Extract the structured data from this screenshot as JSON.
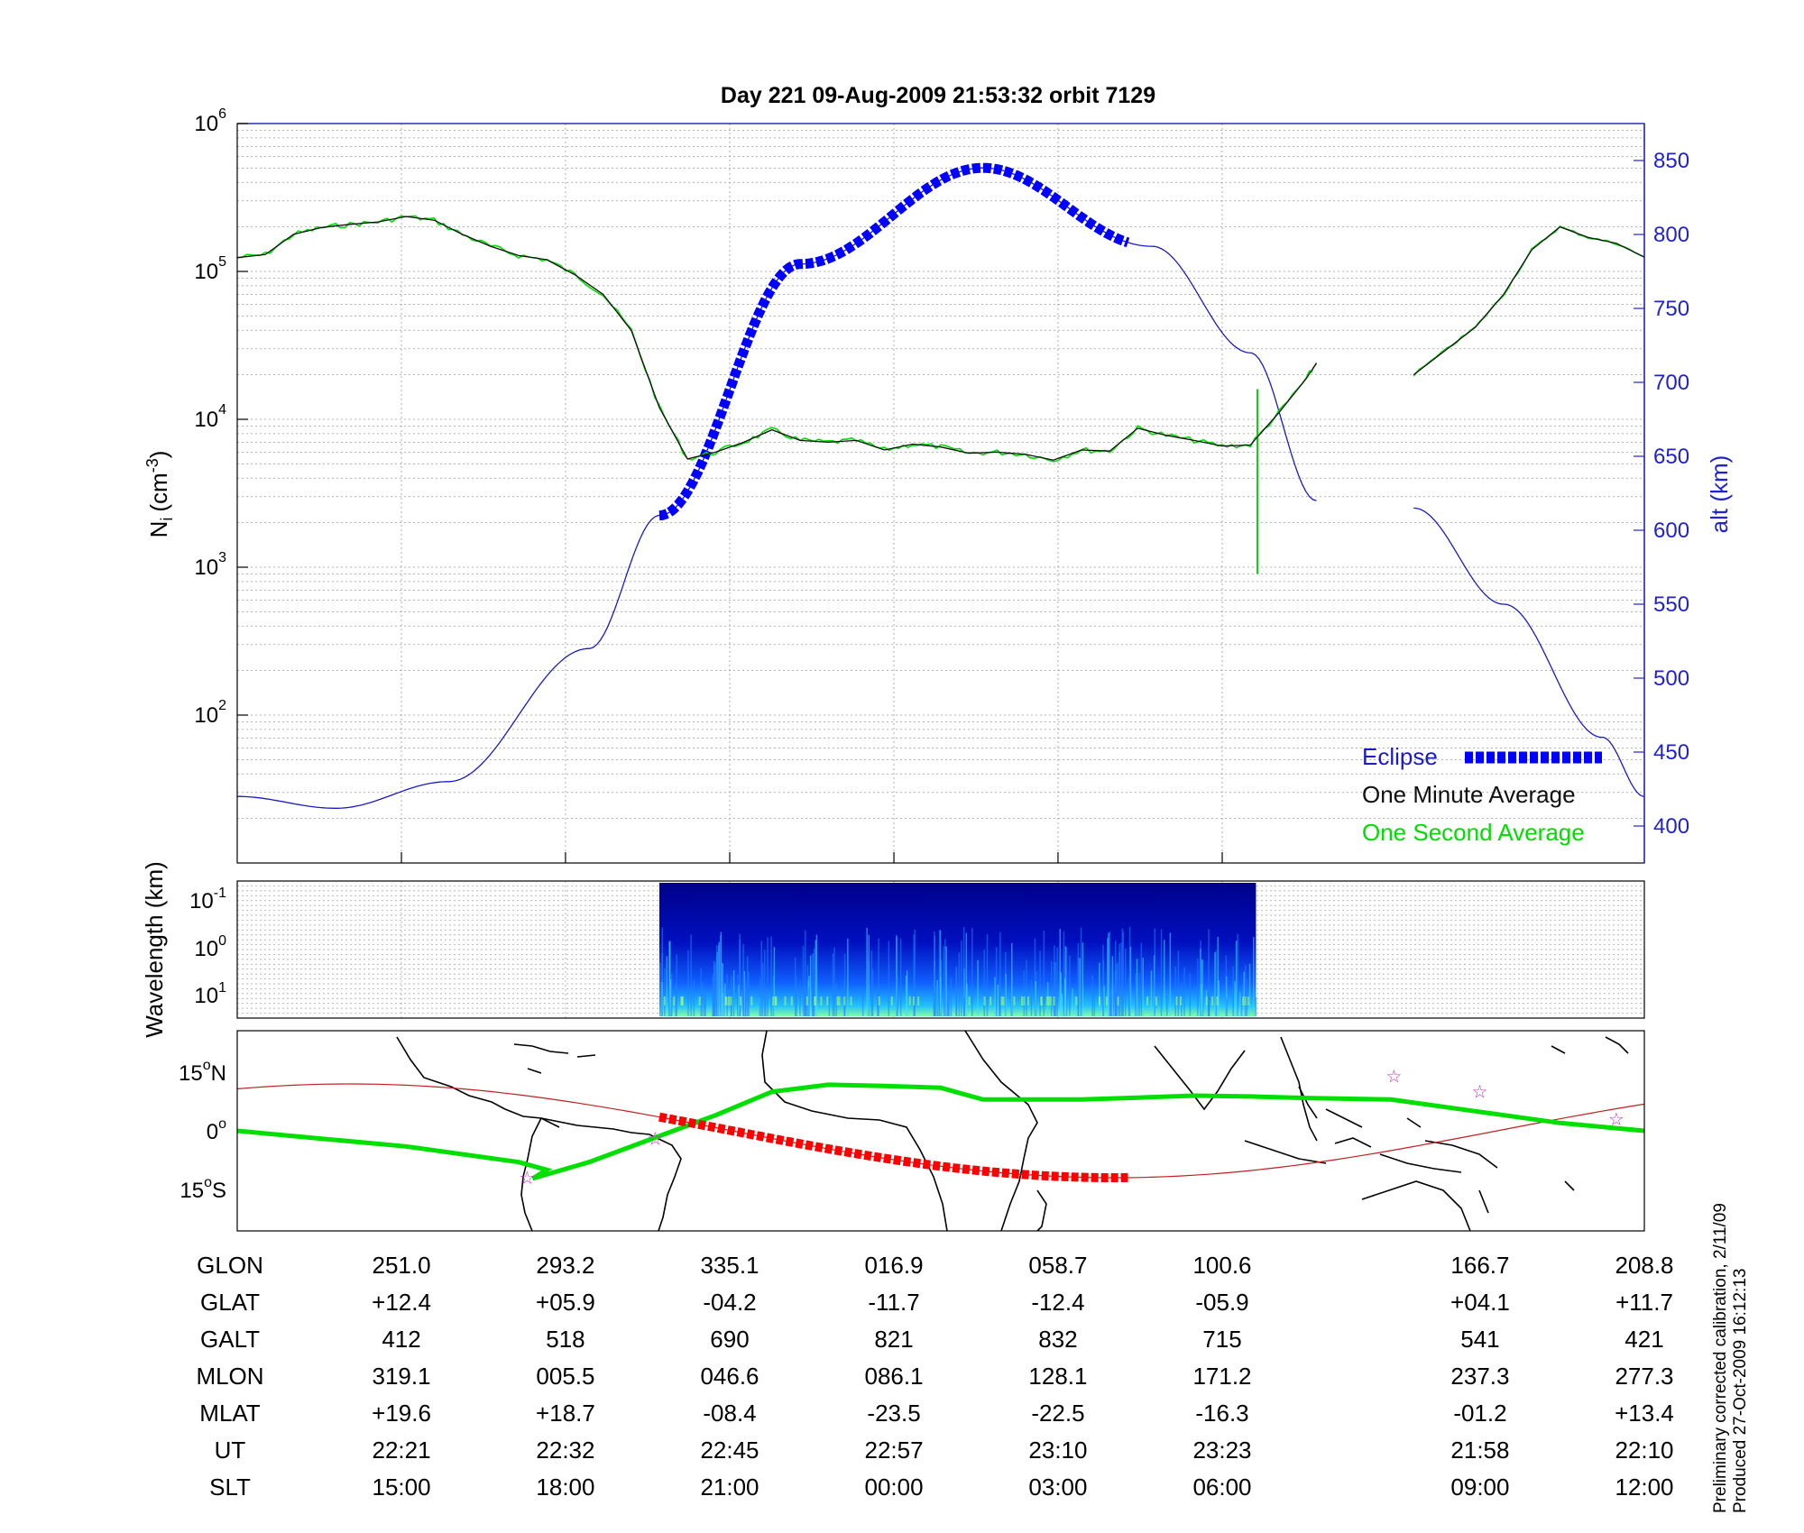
{
  "title": "Day 221  09-Aug-2009 21:53:32   orbit 7129",
  "colors": {
    "altitude": "#1a1ac8",
    "eclipse": "#0000ff",
    "minute_avg": "#101010",
    "second_avg": "#00dd00",
    "map_track": "#00e000",
    "map_eclipse": "#ff0000",
    "dip_equator": "#c02020",
    "star": "#cc33cc"
  },
  "chart_data": [
    {
      "type": "line",
      "panel": "ion-density",
      "ylabel_left": "N",
      "ylabel_left_sub": "i",
      "ylabel_left_unit": "(cm",
      "ylabel_left_exp": "-3",
      "ylabel_right": "alt (km)",
      "yscale_left": "log",
      "ylim_left": [
        10,
        1000000
      ],
      "left_ticks": [
        {
          "base": "10",
          "exp": "2",
          "v": 100
        },
        {
          "base": "10",
          "exp": "3",
          "v": 1000
        },
        {
          "base": "10",
          "exp": "4",
          "v": 10000
        },
        {
          "base": "10",
          "exp": "5",
          "v": 100000
        },
        {
          "base": "10",
          "exp": "6",
          "v": 1000000
        }
      ],
      "ylim_right": [
        375,
        875
      ],
      "right_ticks": [
        "400",
        "450",
        "500",
        "550",
        "600",
        "650",
        "700",
        "750",
        "800",
        "850"
      ],
      "grid": true,
      "legend_position": "bottom-right",
      "legend": [
        {
          "label": "Eclipse",
          "color": "#0000ff"
        },
        {
          "label": "One Minute Average",
          "color": "#101010"
        },
        {
          "label": "One Second Average",
          "color": "#00dd00"
        }
      ],
      "series": [
        {
          "name": "One Minute Average",
          "axis": "left",
          "x": [
            0,
            0.02,
            0.04,
            0.06,
            0.08,
            0.1,
            0.12,
            0.14,
            0.16,
            0.18,
            0.2,
            0.22,
            0.24,
            0.26,
            0.28,
            0.3,
            0.32,
            0.34,
            0.36,
            0.38,
            0.4,
            0.42,
            0.44,
            0.46,
            0.48,
            0.5,
            0.52,
            0.54,
            0.56,
            0.58,
            0.6,
            0.62,
            0.64,
            0.66,
            0.68,
            0.7,
            0.72,
            0.74,
            0.76,
            0.767
          ],
          "y": [
            124000,
            130000,
            178000,
            198000,
            208000,
            216000,
            235000,
            222000,
            178000,
            148000,
            128000,
            120000,
            95000,
            70000,
            40000,
            12000,
            5400,
            6000,
            7000,
            8500,
            7200,
            7000,
            7200,
            6200,
            6800,
            6500,
            5900,
            6000,
            5800,
            5300,
            6200,
            6100,
            8700,
            7800,
            7200,
            6600,
            6700,
            11000,
            19000,
            24000
          ],
          "segment_2_x": [
            0.836,
            0.86,
            0.88,
            0.9,
            0.92,
            0.94,
            0.96,
            0.98,
            1.0
          ],
          "segment_2_y": [
            20000,
            30000,
            42000,
            70000,
            140000,
            200000,
            170000,
            155000,
            125000
          ]
        },
        {
          "name": "One Second Average",
          "axis": "left",
          "note": "tracks one-minute average with noise; spike down near x=0.725",
          "spike_x": 0.725,
          "spike_min": 900
        },
        {
          "name": "altitude",
          "axis": "right",
          "unit": "km",
          "x": [
            0,
            0.07,
            0.15,
            0.25,
            0.3,
            0.4,
            0.53,
            0.65,
            0.72,
            0.767,
            0.836,
            0.9,
            0.97,
            1.0
          ],
          "y": [
            420,
            412,
            430,
            520,
            610,
            780,
            845,
            792,
            720,
            620,
            615,
            550,
            460,
            420
          ]
        },
        {
          "name": "Eclipse",
          "axis": "right",
          "x_start": 0.3,
          "x_end": 0.633
        }
      ]
    },
    {
      "type": "heatmap",
      "panel": "wavelength-spectrogram",
      "ylabel": "Wavelength (km)",
      "yscale": "log",
      "y_ticks": [
        {
          "base": "10",
          "exp": "-1"
        },
        {
          "base": "10",
          "exp": "0"
        },
        {
          "base": "10",
          "exp": "1"
        }
      ],
      "x_start": 0.3,
      "x_end": 0.724,
      "colormap": "jet"
    },
    {
      "type": "map",
      "panel": "ground-track",
      "y_ticks": [
        {
          "value": "15",
          "hem": "N"
        },
        {
          "value": "0",
          "hem": ""
        },
        {
          "value": "15",
          "hem": "S"
        }
      ],
      "track_lat": [
        0,
        -2,
        -4,
        -6,
        -8,
        -10,
        -12.2,
        -8,
        4,
        10,
        11.8,
        11.5,
        11,
        8,
        8,
        8,
        8.5,
        9,
        8.8,
        8.4,
        8,
        5,
        2,
        0
      ],
      "track_x": [
        0,
        0.06,
        0.12,
        0.16,
        0.2,
        0.22,
        0.21,
        0.25,
        0.34,
        0.38,
        0.42,
        0.46,
        0.5,
        0.53,
        0.56,
        0.6,
        0.64,
        0.68,
        0.72,
        0.76,
        0.82,
        0.88,
        0.94,
        1.0
      ],
      "eclipse_x_start": 0.3,
      "eclipse_x_end": 0.633
    }
  ],
  "table": {
    "headers": [
      "GLON",
      "GLAT",
      "GALT",
      "MLON",
      "MLAT",
      "UT",
      "SLT"
    ],
    "columns": [
      {
        "x": 0.1167,
        "values": [
          "251.0",
          "+12.4",
          "412",
          "319.1",
          "+19.6",
          "22:21",
          "15:00"
        ]
      },
      {
        "x": 0.2333,
        "values": [
          "293.2",
          "+05.9",
          "518",
          "005.5",
          "+18.7",
          "22:32",
          "18:00"
        ]
      },
      {
        "x": 0.35,
        "values": [
          "335.1",
          "-04.2",
          "690",
          "046.6",
          "-08.4",
          "22:45",
          "21:00"
        ]
      },
      {
        "x": 0.4667,
        "values": [
          "016.9",
          "-11.7",
          "821",
          "086.1",
          "-23.5",
          "22:57",
          "00:00"
        ]
      },
      {
        "x": 0.5833,
        "values": [
          "058.7",
          "-12.4",
          "832",
          "128.1",
          "-22.5",
          "23:10",
          "03:00"
        ]
      },
      {
        "x": 0.7,
        "values": [
          "100.6",
          "-05.9",
          "715",
          "171.2",
          "-16.3",
          "23:23",
          "06:00"
        ]
      },
      {
        "x": 0.8833,
        "values": [
          "166.7",
          "+04.1",
          "541",
          "237.3",
          "-01.2",
          "21:58",
          "09:00"
        ]
      },
      {
        "x": 1.0,
        "values": [
          "208.8",
          "+11.7",
          "421",
          "277.3",
          "+13.4",
          "22:10",
          "12:00"
        ]
      }
    ]
  },
  "side_note": {
    "line1": "Preliminary corrected calibration, 2/11/09",
    "line2": "Produced 27-Oct-2009 16:12:13"
  }
}
